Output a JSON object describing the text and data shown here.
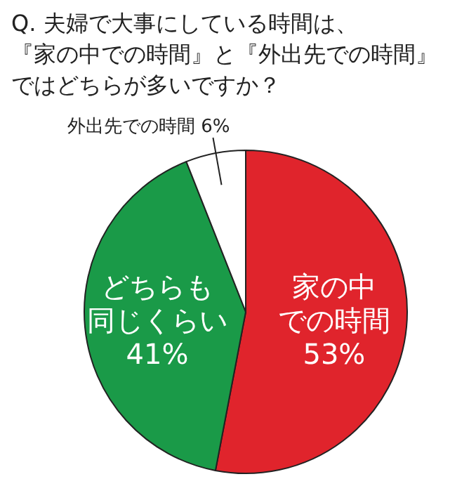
{
  "chart_data": {
    "type": "pie",
    "title": "Q. 夫婦で大事にしている時間は、『家の中での時間』と『外出先での時間』ではどちらが多いですか？",
    "categories": [
      "家の中での時間",
      "どちらも同じくらい",
      "外出先での時間"
    ],
    "values": [
      53,
      41,
      6
    ],
    "colors": [
      "#e0242c",
      "#1a9a48",
      "#ffffff"
    ],
    "value_labels": [
      "53%",
      "41%",
      "6%"
    ]
  }
}
